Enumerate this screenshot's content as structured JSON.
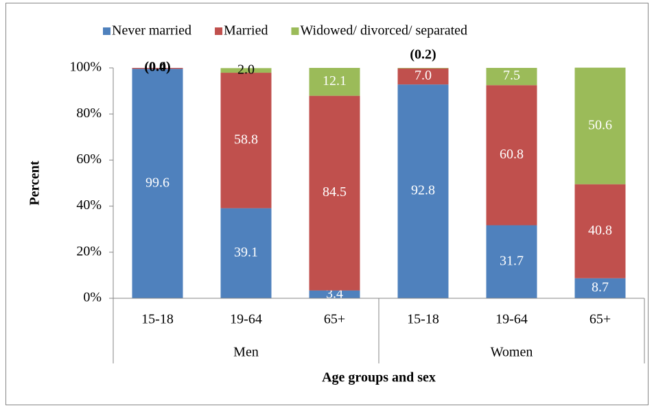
{
  "chart_data": {
    "type": "stacked_bar",
    "xlabel": "Age groups and sex",
    "ylabel": "Percent",
    "categories": [
      "15-18",
      "19-64",
      "65+",
      "15-18",
      "19-64",
      "65+"
    ],
    "groups": [
      "Men",
      "Women"
    ],
    "series": [
      {
        "name": "Never married",
        "color": "#4f81bd",
        "values": [
          99.6,
          39.1,
          3.4,
          92.8,
          31.7,
          8.7
        ],
        "value_labels": [
          "99.6",
          "39.1",
          "3.4",
          "92.8",
          "31.7",
          "8.7"
        ]
      },
      {
        "name": "Married",
        "color": "#c0504d",
        "values": [
          0.4,
          58.8,
          84.5,
          7.0,
          60.8,
          40.8
        ],
        "value_labels": [
          "(0.4)",
          "58.8",
          "84.5",
          "7.0",
          "60.8",
          "40.8"
        ]
      },
      {
        "name": "Widowed/ divorced/ separated",
        "color": "#9bbb59",
        "values": [
          0.0,
          2.0,
          12.1,
          0.2,
          7.5,
          50.6
        ],
        "value_labels": [
          "(0.0)",
          "2.0",
          "12.1",
          "(0.2)",
          "7.5",
          "50.6"
        ]
      }
    ],
    "ylim": [
      0,
      100
    ],
    "yticks": [
      {
        "value": 0,
        "label": "0%"
      },
      {
        "value": 20,
        "label": "20%"
      },
      {
        "value": 40,
        "label": "40%"
      },
      {
        "value": 60,
        "label": "60%"
      },
      {
        "value": 80,
        "label": "80%"
      },
      {
        "value": 100,
        "label": "100%"
      }
    ],
    "legend": "top"
  }
}
